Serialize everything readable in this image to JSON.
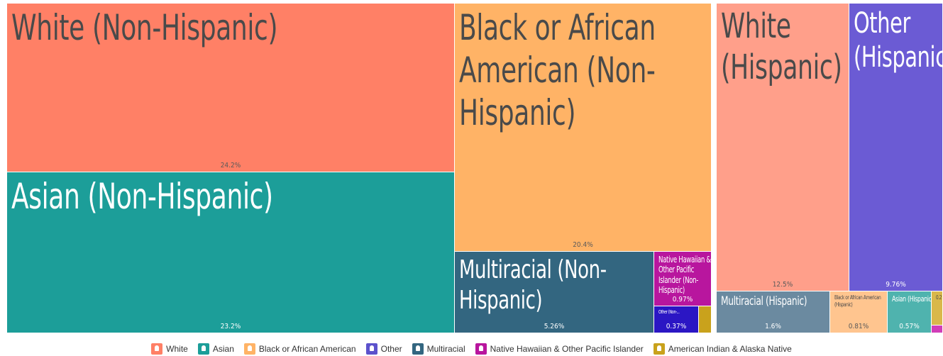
{
  "chart_data": {
    "type": "treemap",
    "groups": [
      {
        "name": "Non-Hispanic",
        "items": [
          {
            "label": "White (Non-Hispanic)",
            "value_label": "24.2%",
            "value": 24.2,
            "category": "White"
          },
          {
            "label": "Asian (Non-Hispanic)",
            "value_label": "23.2%",
            "value": 23.2,
            "category": "Asian"
          },
          {
            "label": "Black or African American (Non-Hispanic)",
            "value_label": "20.4%",
            "value": 20.4,
            "category": "Black or African American"
          },
          {
            "label": "Multiracial (Non-Hispanic)",
            "value_label": "5.26%",
            "value": 5.26,
            "category": "Multiracial"
          },
          {
            "label": "Native Hawaiian & Other Pacific Islander (Non-Hispanic)",
            "value_label": "0.97%",
            "value": 0.97,
            "category": "Native Hawaiian & Other Pacific Islander"
          },
          {
            "label": "Other (Non-...",
            "value_label": "0.37%",
            "value": 0.37,
            "category": "Other"
          },
          {
            "label": "",
            "value_label": "",
            "value": 0.2,
            "category": "American Indian & Alaska Native"
          }
        ]
      },
      {
        "name": "Hispanic",
        "items": [
          {
            "label": "White (Hispanic)",
            "value_label": "12.5%",
            "value": 12.5,
            "category": "White"
          },
          {
            "label": "Other (Hispanic)",
            "value_label": "9.76%",
            "value": 9.76,
            "category": "Other"
          },
          {
            "label": "Multiracial (Hispanic)",
            "value_label": "1.6%",
            "value": 1.6,
            "category": "Multiracial"
          },
          {
            "label": "Black or African American (Hispanic)",
            "value_label": "0.81%",
            "value": 0.81,
            "category": "Black or African American"
          },
          {
            "label": "Asian (Hispanic)",
            "value_label": "0.57%",
            "value": 0.57,
            "category": "Asian"
          },
          {
            "label": "0.2",
            "value_label": "",
            "value": 0.2,
            "category": "American Indian & Alaska Native"
          },
          {
            "label": "",
            "value_label": "",
            "value": 0.1,
            "category": "Native Hawaiian & Other Pacific Islander"
          }
        ]
      }
    ],
    "legend": [
      {
        "name": "White",
        "color": "#ff8066"
      },
      {
        "name": "Asian",
        "color": "#1c9e99"
      },
      {
        "name": "Black or African American",
        "color": "#ffb366"
      },
      {
        "name": "Other",
        "color": "#5c52cc"
      },
      {
        "name": "Multiracial",
        "color": "#336680"
      },
      {
        "name": "Native Hawaiian & Other Pacific Islander",
        "color": "#b8169e"
      },
      {
        "name": "American Indian & Alaska Native",
        "color": "#c9a21c"
      }
    ],
    "legend_placement": "bottom",
    "colors": {
      "White (Non-Hispanic)": "#ff8066",
      "Asian (Non-Hispanic)": "#1c9e99",
      "Black or African American (Non-Hispanic)": "#ffb366",
      "Multiracial (Non-Hispanic)": "#336680",
      "Native Hawaiian & Other Pacific Islander (Non-Hispanic)": "#b8169e",
      "Other (Non-...": "#2b16c4",
      "American Indian & Alaska Native (Non-Hispanic)": "#c9a21c",
      "White (Hispanic)": "#ff9f8a",
      "Other (Hispanic)": "#6b5bd4",
      "Multiracial (Hispanic)": "#6b8aa0",
      "Black or African American (Hispanic)": "#ffc58f",
      "Asian (Hispanic)": "#4fb3ae",
      "American Indian & Alaska Native (Hispanic)": "#d9b84a",
      "Native Hawaiian & Other Pacific Islander (Hispanic)": "#d13db8"
    }
  }
}
